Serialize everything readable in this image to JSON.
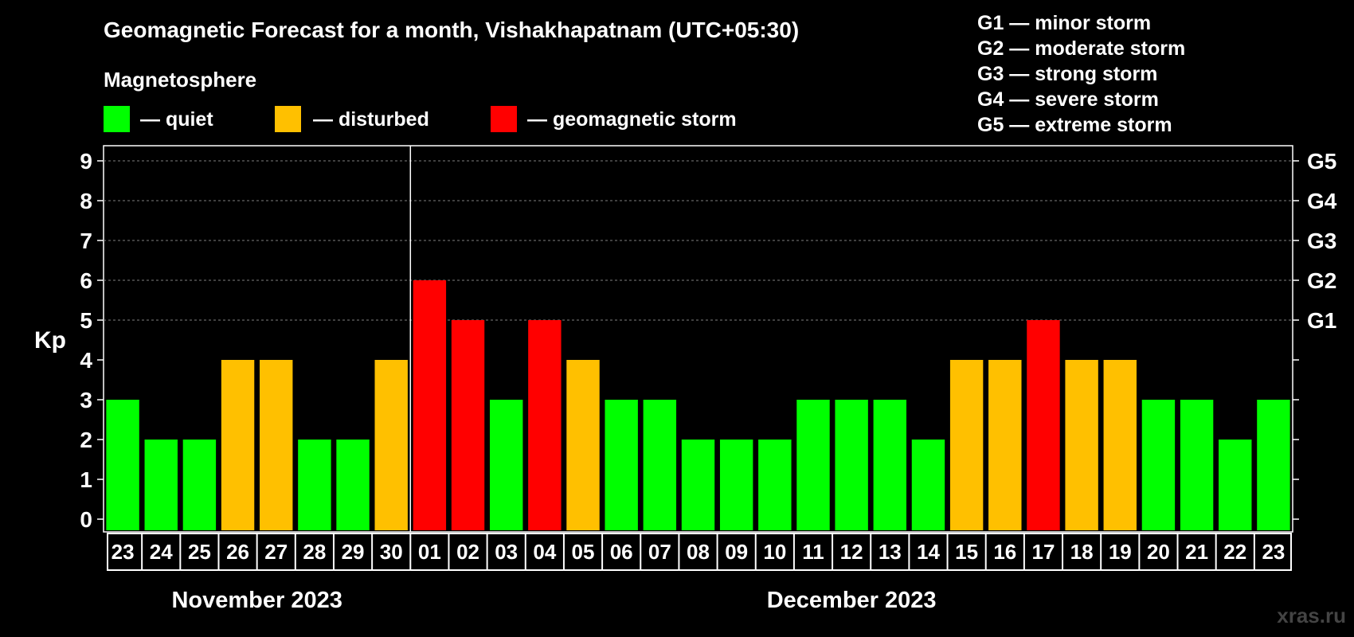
{
  "chart_data": {
    "type": "bar",
    "title": "Geomagnetic Forecast for a month, Vishakhapatnam (UTC+05:30)",
    "ylabel": "Kp",
    "xlabel": "",
    "ylim": [
      0,
      9
    ],
    "yticks": [
      "0",
      "1",
      "2",
      "3",
      "4",
      "5",
      "6",
      "7",
      "8",
      "9"
    ],
    "right_axis_labels": [
      {
        "level": 5,
        "label": "G1"
      },
      {
        "level": 6,
        "label": "G2"
      },
      {
        "level": 7,
        "label": "G3"
      },
      {
        "level": 8,
        "label": "G4"
      },
      {
        "level": 9,
        "label": "G5"
      }
    ],
    "gridlines_at": [
      5,
      6,
      7,
      8,
      9
    ],
    "categories": [
      "23",
      "24",
      "25",
      "26",
      "27",
      "28",
      "29",
      "30",
      "01",
      "02",
      "03",
      "04",
      "05",
      "06",
      "07",
      "08",
      "09",
      "10",
      "11",
      "12",
      "13",
      "14",
      "15",
      "16",
      "17",
      "18",
      "19",
      "20",
      "21",
      "22",
      "23"
    ],
    "values": [
      3,
      2,
      2,
      4,
      4,
      2,
      2,
      4,
      6,
      5,
      3,
      5,
      4,
      3,
      3,
      2,
      2,
      2,
      3,
      3,
      3,
      2,
      4,
      4,
      5,
      4,
      4,
      3,
      3,
      2,
      3
    ],
    "month_divider_after_index": 7,
    "months": [
      {
        "label": "November 2023",
        "start_index": 0,
        "end_index": 7
      },
      {
        "label": "December 2023",
        "start_index": 8,
        "end_index": 30
      }
    ],
    "color_rule": {
      "quiet_max": 3,
      "disturbed_max": 4
    },
    "colors": {
      "quiet": "#00ff00",
      "disturbed": "#ffc000",
      "storm": "#ff0000",
      "background": "#000000",
      "foreground": "#ffffff",
      "grid": "#808080"
    }
  },
  "legend": {
    "title": "Magnetosphere",
    "items": [
      {
        "label": "— quiet",
        "color": "#00ff00"
      },
      {
        "label": "— disturbed",
        "color": "#ffc000"
      },
      {
        "label": "— geomagnetic storm",
        "color": "#ff0000"
      }
    ]
  },
  "storm_scale": [
    "G1 — minor storm",
    "G2 — moderate storm",
    "G3 — strong storm",
    "G4 — severe storm",
    "G5 — extreme storm"
  ],
  "watermark": "xras.ru"
}
